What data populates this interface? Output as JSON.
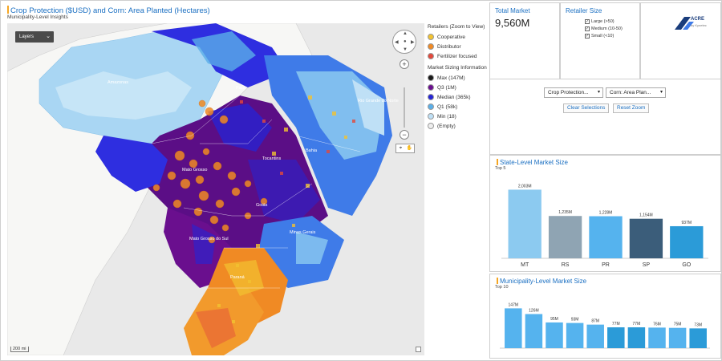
{
  "map": {
    "title": "Crop Protection ($USD) and Corn: Area Planted (Hectares)",
    "subtitle": "Municipality-Level Insights",
    "layers_label": "Layers",
    "scale_label": "200 mi",
    "place_labels": [
      "Amazonas",
      "Pará",
      "Mato Grosso",
      "Mato Grosso do Sul",
      "Paraná",
      "Rio Grande do Norte",
      "Tocantins",
      "Goiás",
      "Bahia",
      "Minas Gerais"
    ]
  },
  "legend": {
    "retailers_header": "Retailers (Zoom to View)",
    "retailers": [
      {
        "label": "Cooperative",
        "color": "#f2c230"
      },
      {
        "label": "Distributor",
        "color": "#f08a24"
      },
      {
        "label": "Fertilizer focused",
        "color": "#e3493b"
      }
    ],
    "sizing_header": "Market Sizing Information",
    "sizing": [
      {
        "label": "Max (147M)",
        "color": "#1a1a1a"
      },
      {
        "label": "Q3 (1M)",
        "color": "#6a0f8e"
      },
      {
        "label": "Median (365k)",
        "color": "#2424d6"
      },
      {
        "label": "Q1 (58k)",
        "color": "#5aaee8"
      },
      {
        "label": "Min (18)",
        "color": "#bfe0f6"
      },
      {
        "label": "(Empty)",
        "color": "#eeeeee"
      }
    ]
  },
  "total_market": {
    "title": "Total Market",
    "value": "9,560M"
  },
  "retailer_size": {
    "title": "Retailer Size",
    "items": [
      {
        "label": "Large (>50)",
        "checked": true
      },
      {
        "label": "Medium (10-50)",
        "checked": true
      },
      {
        "label": "Small (<10)",
        "checked": true
      }
    ]
  },
  "logo": {
    "text": "ACRE",
    "sub": "by Kynetec"
  },
  "filters": {
    "dropdown1": "Crop Protection...",
    "dropdown2": "Corn: Area Plan...",
    "clear_label": "Clear Selections",
    "reset_label": "Reset Zoom"
  },
  "chart_data": [
    {
      "type": "bar",
      "title": "State-Level Market Size",
      "subtitle": "Top 5",
      "categories": [
        "MT",
        "RS",
        "PR",
        "SP",
        "GO"
      ],
      "values": [
        2003,
        1235,
        1228,
        1154,
        937
      ],
      "labels": [
        "2,003M",
        "1,235M",
        "1,228M",
        "1,154M",
        "937M"
      ],
      "colors": [
        "#8ccaf0",
        "#8fa4b3",
        "#55b3ee",
        "#3b5d7a",
        "#2b9bd8"
      ],
      "ylim": [
        0,
        2200
      ]
    },
    {
      "type": "bar",
      "title": "Municipality-Level Market Size",
      "subtitle": "Top 10",
      "values": [
        147,
        126,
        95,
        93,
        87,
        77,
        77,
        76,
        75,
        73
      ],
      "labels": [
        "147M",
        "126M",
        "95M",
        "93M",
        "87M",
        "77M",
        "77M",
        "76M",
        "75M",
        "73M"
      ],
      "colors": [
        "#55b3ee",
        "#55b3ee",
        "#55b3ee",
        "#55b3ee",
        "#55b3ee",
        "#2b9bd8",
        "#2b9bd8",
        "#55b3ee",
        "#55b3ee",
        "#2b9bd8"
      ],
      "ylim": [
        0,
        160
      ]
    }
  ]
}
